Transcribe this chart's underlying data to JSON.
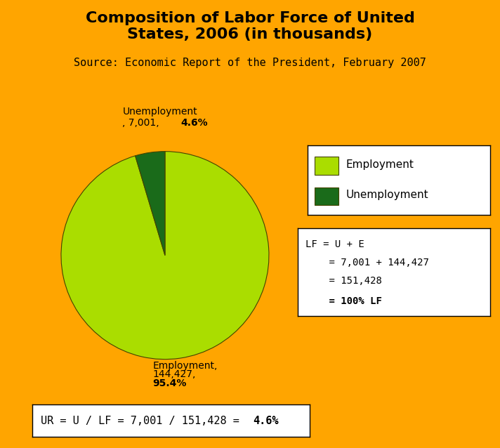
{
  "title": "Composition of Labor Force of United\nStates, 2006 (in thousands)",
  "subtitle": "Source: Economic Report of the President, February 2007",
  "background_color": "#FFA500",
  "pie_values": [
    144427,
    7001
  ],
  "pie_labels": [
    "Employment",
    "Unemployment"
  ],
  "pie_colors": [
    "#AADD00",
    "#1A6B1A"
  ],
  "pie_edge_color": "#444400",
  "legend_labels": [
    "Employment",
    "Unemployment"
  ],
  "legend_colors": [
    "#AADD00",
    "#1A6B1A"
  ],
  "formula_lines": [
    "LF = U + E",
    "    = 7,001 + 144,427",
    "    = 151,428",
    "    = 100% LF"
  ],
  "formula_bold_last": true,
  "ur_prefix": "UR = U / LF = 7,001 / 151,428 = ",
  "ur_suffix": "4.6%",
  "title_fontsize": 16,
  "subtitle_fontsize": 11,
  "label_fontsize": 10,
  "unemp_label_line1": "Unemployment",
  "unemp_label_line2": ", 7,001, ",
  "unemp_label_bold": "4.6%",
  "emp_label_line1": "Employment,",
  "emp_label_line2": "144,427,",
  "emp_label_bold": "95.4%"
}
